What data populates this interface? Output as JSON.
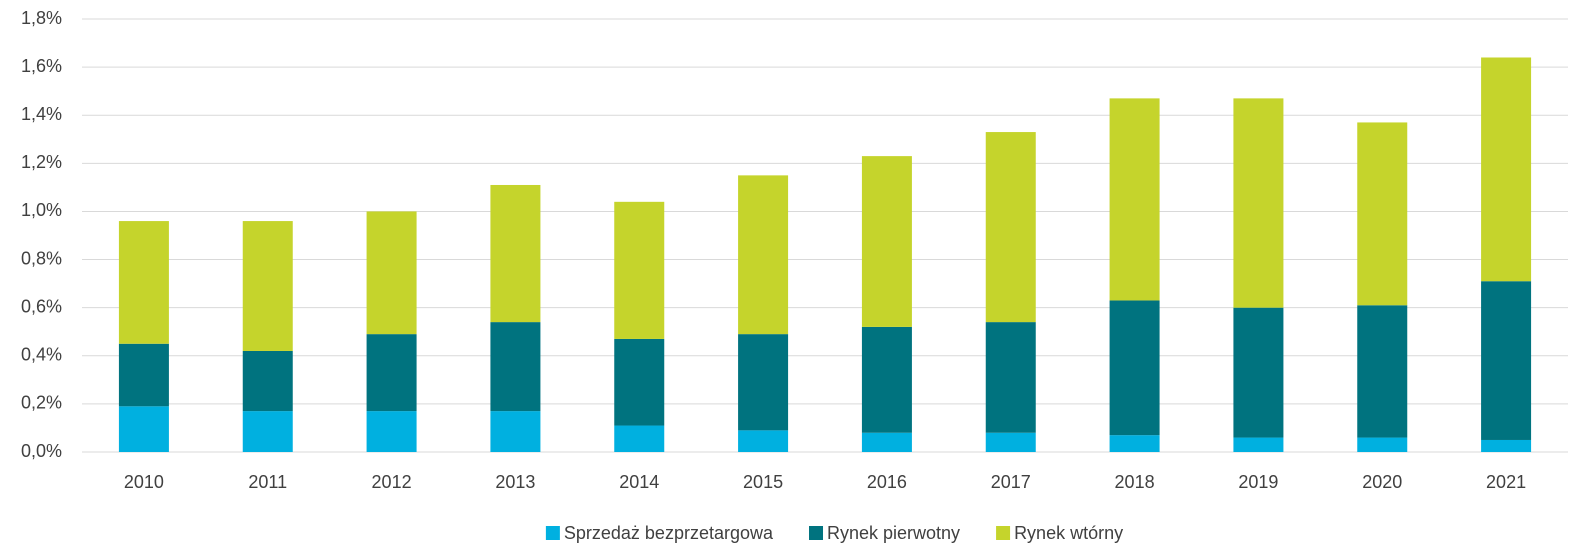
{
  "chart_data": {
    "type": "stacked_bar",
    "categories": [
      "2010",
      "2011",
      "2012",
      "2013",
      "2014",
      "2015",
      "2016",
      "2017",
      "2018",
      "2019",
      "2020",
      "2021"
    ],
    "series": [
      {
        "name": "Sprzedaż bezprzetargowa",
        "color": "#00b0e0",
        "values": [
          0.19,
          0.17,
          0.17,
          0.17,
          0.11,
          0.09,
          0.08,
          0.08,
          0.07,
          0.06,
          0.06,
          0.05
        ]
      },
      {
        "name": "Rynek pierwotny",
        "color": "#00737f",
        "values": [
          0.26,
          0.25,
          0.32,
          0.37,
          0.36,
          0.4,
          0.44,
          0.46,
          0.56,
          0.54,
          0.55,
          0.66
        ]
      },
      {
        "name": "Rynek wtórny",
        "color": "#c5d42c",
        "values": [
          0.51,
          0.54,
          0.51,
          0.57,
          0.57,
          0.66,
          0.71,
          0.79,
          0.84,
          0.87,
          0.76,
          0.93
        ]
      }
    ],
    "ylim": [
      0,
      1.8
    ],
    "yticks": [
      {
        "value": 0,
        "label": "0,0%"
      },
      {
        "value": 0.2,
        "label": "0,2%"
      },
      {
        "value": 0.4,
        "label": "0,4%"
      },
      {
        "value": 0.6,
        "label": "0,6%"
      },
      {
        "value": 0.8,
        "label": "0,8%"
      },
      {
        "value": 1.0,
        "label": "1,0%"
      },
      {
        "value": 1.2,
        "label": "1,2%"
      },
      {
        "value": 1.4,
        "label": "1,4%"
      },
      {
        "value": 1.6,
        "label": "1,6%"
      },
      {
        "value": 1.8,
        "label": "1,8%"
      }
    ],
    "grid": true,
    "legend": "bottom"
  }
}
